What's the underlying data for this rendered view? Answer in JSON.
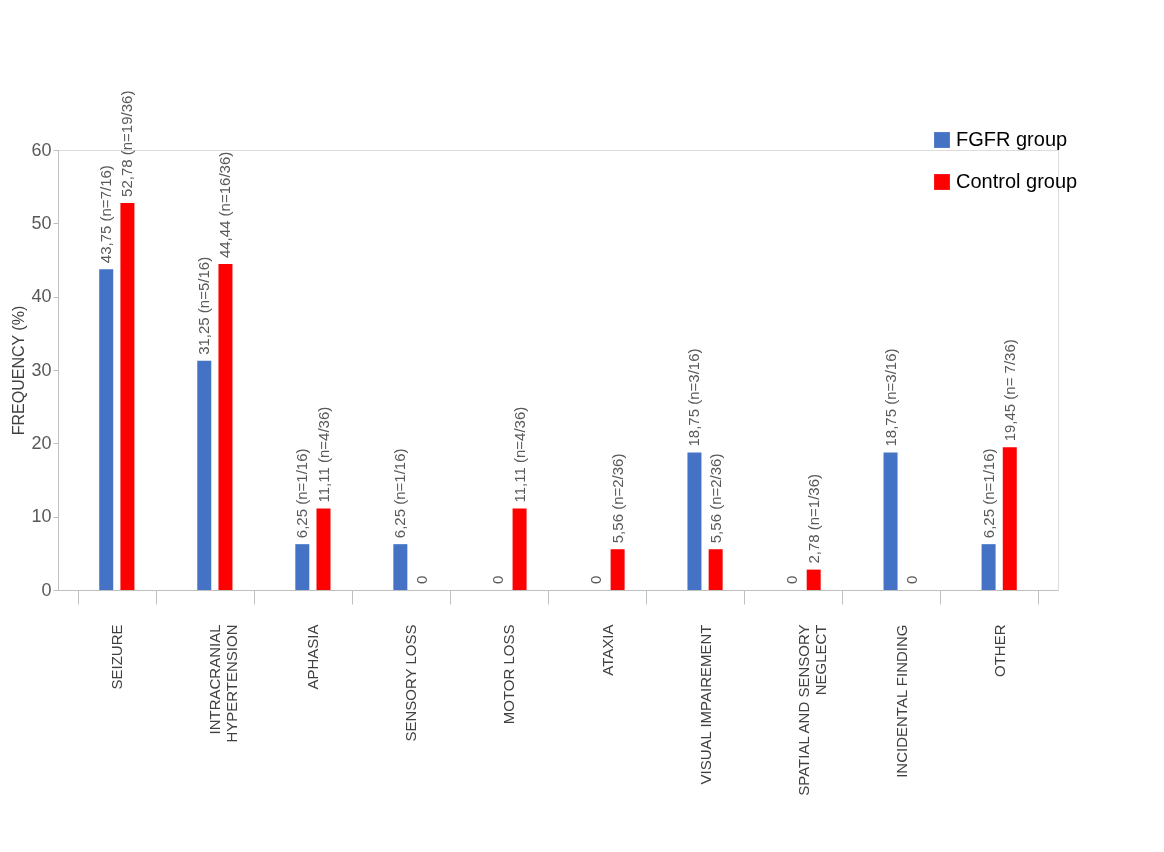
{
  "chart_data": {
    "type": "bar",
    "ylabel": "FREQUENCY (%)",
    "categories": [
      "SEIZURE",
      "INTRACRANIAL HYPERTENSION",
      "APHASIA",
      "SENSORY LOSS",
      "MOTOR LOSS",
      "ATAXIA",
      "VISUAL IMPAIREMENT",
      "SPATIAL AND SENSORY NEGLECT",
      "INCIDENTAL FINDING",
      "OTHER"
    ],
    "series": [
      {
        "name": "FGFR group",
        "color": "#4472c4",
        "values": [
          43.75,
          31.25,
          6.25,
          6.25,
          0,
          0,
          18.75,
          0,
          18.75,
          6.25
        ],
        "value_labels": [
          "43,75 (n=7/16)",
          "31,25 (n=5/16)",
          "6,25 (n=1/16)",
          "6,25 (n=1/16)",
          "0",
          "0",
          "18,75 (n=3/16)",
          "0",
          "18,75 (n=3/16)",
          "6,25 (n=1/16)"
        ]
      },
      {
        "name": "Control group",
        "color": "#ff0000",
        "values": [
          52.78,
          44.44,
          11.11,
          0,
          11.11,
          5.56,
          5.56,
          2.78,
          0,
          19.45
        ],
        "value_labels": [
          "52,78 (n=19/36)",
          "44,44 (n=16/36)",
          "11,11 (n=4/36)",
          "0",
          "11,11 (n=4/36)",
          "5,56 (n=2/36)",
          "5,56 (n=2/36)",
          "2,78 (n=1/36)",
          "0",
          "19,45 (n= 7/36)"
        ]
      }
    ],
    "ylim": [
      0,
      60
    ],
    "yticks": [
      0,
      10,
      20,
      30,
      40,
      50,
      60
    ],
    "grid": false,
    "legend": "top right"
  }
}
